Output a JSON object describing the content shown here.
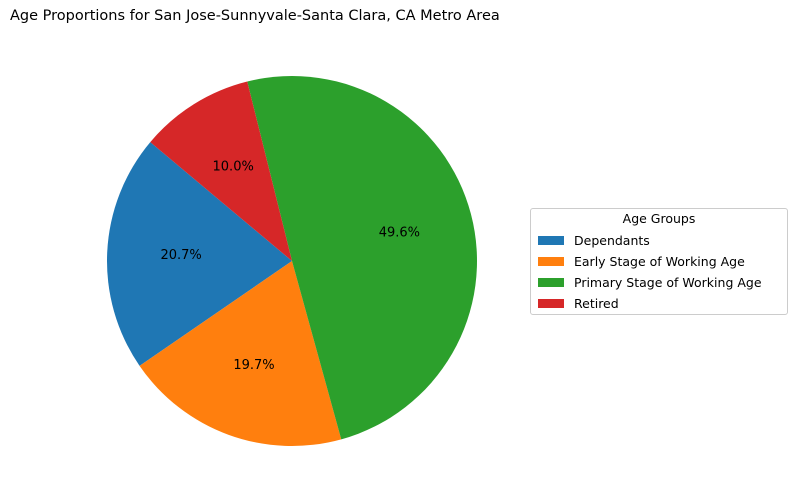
{
  "chart_data": {
    "type": "pie",
    "title": "Age Proportions for San Jose-Sunnyvale-Santa Clara, CA Metro Area",
    "categories": [
      "Dependants",
      "Early Stage of Working Age",
      "Primary Stage of Working Age",
      "Retired"
    ],
    "values": [
      20.7,
      19.7,
      49.6,
      10.0
    ],
    "labels": [
      "20.7%",
      "19.7%",
      "49.6%",
      "10.0%"
    ],
    "colors": [
      "#1f77b4",
      "#ff7f0e",
      "#2ca02c",
      "#d62728"
    ],
    "start_angle_deg": 140,
    "direction": "counterclockwise",
    "legend": {
      "title": "Age Groups",
      "placement": "right"
    }
  }
}
